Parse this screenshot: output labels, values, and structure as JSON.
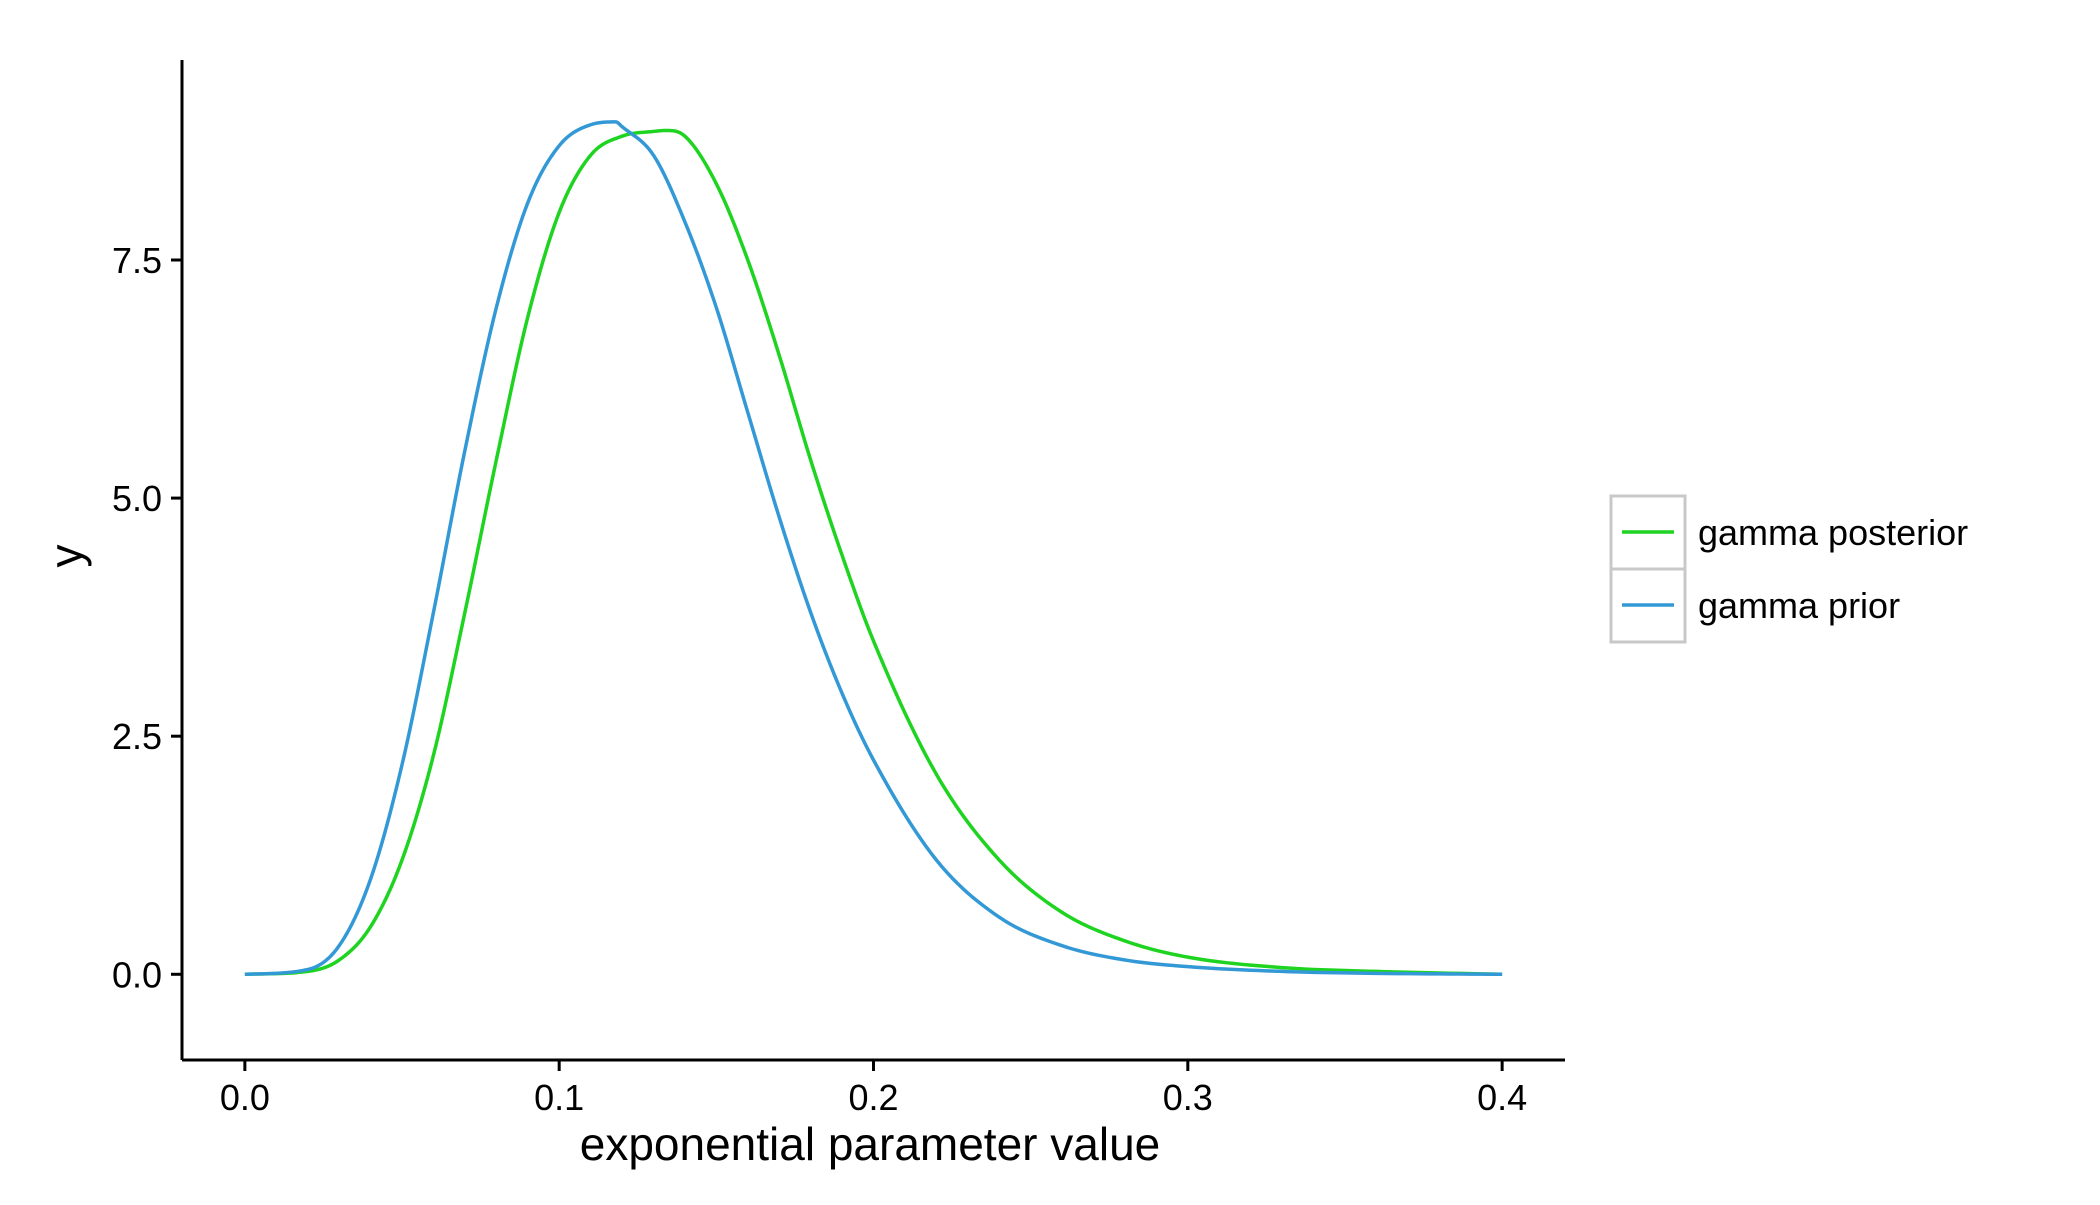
{
  "chart_data": {
    "type": "line",
    "title": "",
    "xlabel": "exponential parameter value",
    "ylabel": "y",
    "xlim": [
      -0.02,
      0.42
    ],
    "ylim": [
      -0.9,
      9.6
    ],
    "x_ticks": [
      0.0,
      0.1,
      0.2,
      0.3,
      0.4
    ],
    "x_tick_labels": [
      "0.0",
      "0.1",
      "0.2",
      "0.3",
      "0.4"
    ],
    "y_ticks": [
      0.0,
      2.5,
      5.0,
      7.5
    ],
    "y_tick_labels": [
      "0.0",
      "2.5",
      "5.0",
      "7.5"
    ],
    "grid": false,
    "legend_position": "right",
    "series": [
      {
        "name": "gamma posterior",
        "color": "#1ed420",
        "x": [
          0.0,
          0.02,
          0.03,
          0.04,
          0.05,
          0.06,
          0.07,
          0.08,
          0.09,
          0.1,
          0.11,
          0.12,
          0.13,
          0.134,
          0.14,
          0.15,
          0.16,
          0.17,
          0.18,
          0.19,
          0.2,
          0.22,
          0.24,
          0.26,
          0.28,
          0.3,
          0.33,
          0.36,
          0.4
        ],
        "y": [
          0.0,
          0.03,
          0.15,
          0.5,
          1.2,
          2.3,
          3.8,
          5.4,
          6.9,
          8.0,
          8.6,
          8.8,
          8.85,
          8.86,
          8.8,
          8.3,
          7.5,
          6.5,
          5.4,
          4.4,
          3.5,
          2.1,
          1.2,
          0.65,
          0.35,
          0.18,
          0.07,
          0.03,
          0.0
        ]
      },
      {
        "name": "gamma prior",
        "color": "#3399d6",
        "x": [
          0.0,
          0.02,
          0.03,
          0.04,
          0.05,
          0.06,
          0.07,
          0.08,
          0.09,
          0.1,
          0.11,
          0.118,
          0.12,
          0.13,
          0.14,
          0.15,
          0.16,
          0.17,
          0.18,
          0.19,
          0.2,
          0.22,
          0.24,
          0.26,
          0.28,
          0.3,
          0.33,
          0.36,
          0.4
        ],
        "y": [
          0.0,
          0.05,
          0.3,
          1.0,
          2.2,
          3.8,
          5.5,
          7.0,
          8.1,
          8.7,
          8.92,
          8.95,
          8.9,
          8.6,
          7.9,
          7.0,
          5.9,
          4.8,
          3.8,
          2.95,
          2.25,
          1.2,
          0.6,
          0.3,
          0.15,
          0.08,
          0.03,
          0.01,
          0.0
        ]
      }
    ]
  }
}
